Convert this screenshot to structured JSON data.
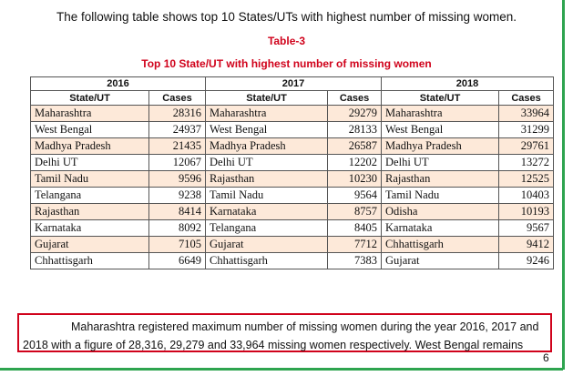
{
  "intro_text": "The following table shows top 10 States/UTs with highest number of missing women.",
  "table_label": "Table-3",
  "table_title": "Top 10 State/UT with highest number of missing women",
  "table": {
    "years": [
      "2016",
      "2017",
      "2018"
    ],
    "col_state": "State/UT",
    "col_cases": "Cases",
    "rows": [
      [
        "Maharashtra",
        "28316",
        "Maharashtra",
        "29279",
        "Maharashtra",
        "33964"
      ],
      [
        "West Bengal",
        "24937",
        "West Bengal",
        "28133",
        "West Bengal",
        "31299"
      ],
      [
        "Madhya Pradesh",
        "21435",
        "Madhya Pradesh",
        "26587",
        "Madhya Pradesh",
        "29761"
      ],
      [
        "Delhi UT",
        "12067",
        "Delhi UT",
        "12202",
        "Delhi UT",
        "13272"
      ],
      [
        "Tamil Nadu",
        "9596",
        "Rajasthan",
        "10230",
        "Rajasthan",
        "12525"
      ],
      [
        "Telangana",
        "9238",
        "Tamil Nadu",
        "9564",
        "Tamil Nadu",
        "10403"
      ],
      [
        "Rajasthan",
        "8414",
        "Karnataka",
        "8757",
        "Odisha",
        "10193"
      ],
      [
        "Karnataka",
        "8092",
        "Telangana",
        "8405",
        "Karnataka",
        "9567"
      ],
      [
        "Gujarat",
        "7105",
        "Gujarat",
        "7712",
        "Chhattisgarh",
        "9412"
      ],
      [
        "Chhattisgarh",
        "6649",
        "Chhattisgarh",
        "7383",
        "Gujarat",
        "9246"
      ]
    ]
  },
  "paragraph": {
    "line1": "Maharashtra registered maximum number of missing women during the year 2016, 2017 and",
    "line2": "2018 with a figure of 28,316, 29,279 and 33,964 missing women respectively. West Bengal remains"
  },
  "page_number": "6",
  "colors": {
    "accent_red": "#d0021b",
    "row_shade": "#fde9d9",
    "rule_green": "#2ea44f"
  }
}
